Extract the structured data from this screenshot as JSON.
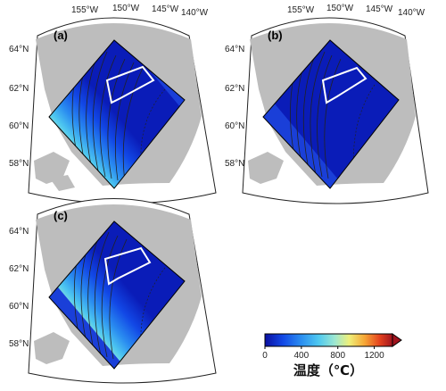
{
  "panels": [
    {
      "label": "(a)",
      "lon_ticks": [
        "155°W",
        "150°W",
        "145°W",
        "140°W"
      ],
      "lat_ticks": [
        "64°N",
        "62°N",
        "60°N",
        "58°N"
      ]
    },
    {
      "label": "(b)",
      "lon_ticks": [
        "155°W",
        "150°W",
        "145°W",
        "140°W"
      ],
      "lat_ticks": [
        "64°N",
        "62°N",
        "60°N",
        "58°N"
      ]
    },
    {
      "label": "(c)",
      "lon_ticks": [],
      "lat_ticks": [
        "64°N",
        "62°N",
        "60°N",
        "58°N"
      ]
    }
  ],
  "colorbar": {
    "title": "温度（℃）",
    "ticks": [
      "0",
      "400",
      "800",
      "1200"
    ],
    "min": 0,
    "max": 1400,
    "colors": [
      "#0a0fa0",
      "#1248e6",
      "#2a8cf0",
      "#4ec8f0",
      "#9ee8d0",
      "#eef07a",
      "#f6a836",
      "#e4421e",
      "#a0141e"
    ]
  }
}
